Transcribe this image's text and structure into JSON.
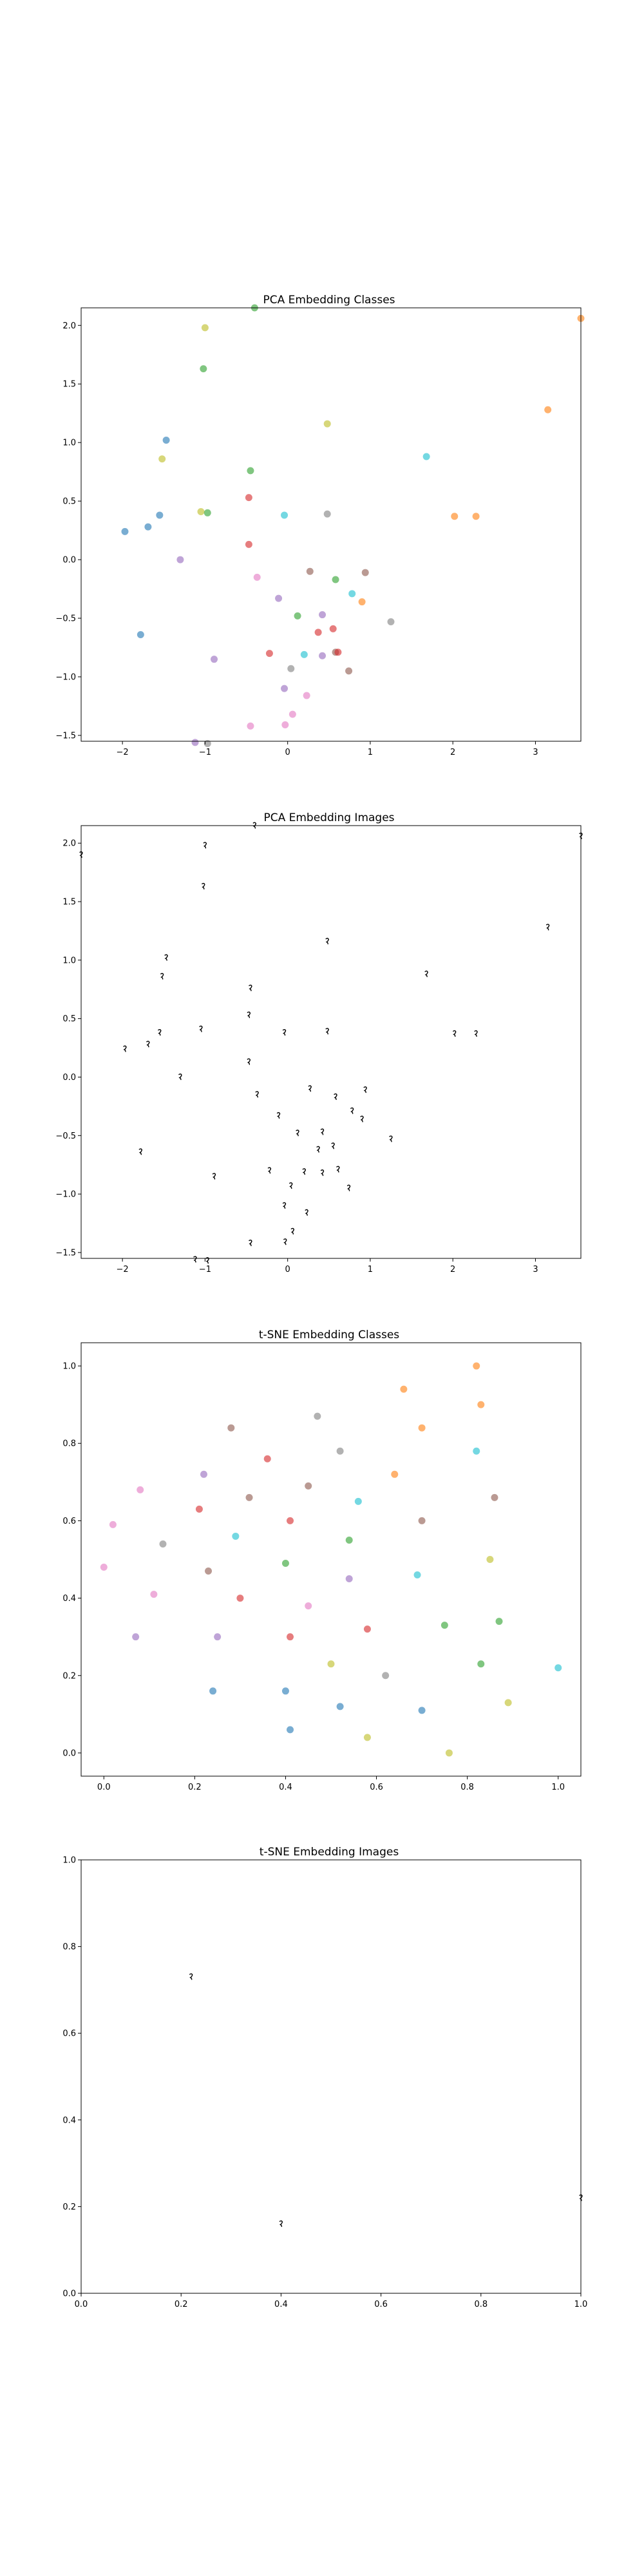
{
  "chart_data": [
    {
      "type": "scatter",
      "title": "PCA Embedding Classes",
      "xlim": [
        -2.5,
        3.55
      ],
      "ylim": [
        -1.55,
        2.15
      ],
      "xticks": [
        -2,
        -1,
        0,
        1,
        2,
        3
      ],
      "yticks": [
        -1.5,
        -1.0,
        -0.5,
        0.0,
        0.5,
        1.0,
        1.5,
        2.0
      ],
      "xtick_labels": [
        "−2",
        "−1",
        "0",
        "1",
        "2",
        "3"
      ],
      "ytick_labels": [
        "−1.5",
        "−1.0",
        "−0.5",
        "0.0",
        "0.5",
        "1.0",
        "1.5",
        "2.0"
      ],
      "marker": "dot",
      "points": [
        {
          "x": -1.0,
          "y": 1.98,
          "color": "#bcbd22"
        },
        {
          "x": -0.4,
          "y": 2.15,
          "color": "#2ca02c"
        },
        {
          "x": 3.55,
          "y": 2.06,
          "color": "#ff7f0e"
        },
        {
          "x": -1.02,
          "y": 1.63,
          "color": "#2ca02c"
        },
        {
          "x": 0.48,
          "y": 1.16,
          "color": "#bcbd22"
        },
        {
          "x": 3.15,
          "y": 1.28,
          "color": "#ff7f0e"
        },
        {
          "x": -1.47,
          "y": 1.02,
          "color": "#1f77b4"
        },
        {
          "x": -1.52,
          "y": 0.86,
          "color": "#bcbd22"
        },
        {
          "x": 1.68,
          "y": 0.88,
          "color": "#17becf"
        },
        {
          "x": -0.45,
          "y": 0.76,
          "color": "#2ca02c"
        },
        {
          "x": -0.47,
          "y": 0.53,
          "color": "#d62728"
        },
        {
          "x": -1.05,
          "y": 0.41,
          "color": "#bcbd22"
        },
        {
          "x": -0.97,
          "y": 0.4,
          "color": "#2ca02c"
        },
        {
          "x": -0.04,
          "y": 0.38,
          "color": "#17becf"
        },
        {
          "x": 0.48,
          "y": 0.39,
          "color": "#7f7f7f"
        },
        {
          "x": 2.02,
          "y": 0.37,
          "color": "#ff7f0e"
        },
        {
          "x": 2.28,
          "y": 0.37,
          "color": "#ff7f0e"
        },
        {
          "x": -1.55,
          "y": 0.38,
          "color": "#1f77b4"
        },
        {
          "x": -1.69,
          "y": 0.28,
          "color": "#1f77b4"
        },
        {
          "x": -1.97,
          "y": 0.24,
          "color": "#1f77b4"
        },
        {
          "x": -0.47,
          "y": 0.13,
          "color": "#d62728"
        },
        {
          "x": -1.3,
          "y": 0.0,
          "color": "#9467bd"
        },
        {
          "x": 0.27,
          "y": -0.1,
          "color": "#8c564b"
        },
        {
          "x": 0.94,
          "y": -0.11,
          "color": "#8c564b"
        },
        {
          "x": -0.37,
          "y": -0.15,
          "color": "#e377c2"
        },
        {
          "x": 0.58,
          "y": -0.17,
          "color": "#2ca02c"
        },
        {
          "x": -0.11,
          "y": -0.33,
          "color": "#9467bd"
        },
        {
          "x": 0.78,
          "y": -0.29,
          "color": "#17becf"
        },
        {
          "x": 0.9,
          "y": -0.36,
          "color": "#ff7f0e"
        },
        {
          "x": 0.12,
          "y": -0.48,
          "color": "#2ca02c"
        },
        {
          "x": 0.42,
          "y": -0.47,
          "color": "#9467bd"
        },
        {
          "x": 1.25,
          "y": -0.53,
          "color": "#7f7f7f"
        },
        {
          "x": 0.37,
          "y": -0.62,
          "color": "#d62728"
        },
        {
          "x": 0.55,
          "y": -0.59,
          "color": "#d62728"
        },
        {
          "x": -1.78,
          "y": -0.64,
          "color": "#1f77b4"
        },
        {
          "x": -0.22,
          "y": -0.8,
          "color": "#d62728"
        },
        {
          "x": 0.2,
          "y": -0.81,
          "color": "#17becf"
        },
        {
          "x": 0.42,
          "y": -0.82,
          "color": "#9467bd"
        },
        {
          "x": 0.58,
          "y": -0.79,
          "color": "#8c564b"
        },
        {
          "x": 0.61,
          "y": -0.79,
          "color": "#d62728"
        },
        {
          "x": -0.89,
          "y": -0.85,
          "color": "#9467bd"
        },
        {
          "x": 0.04,
          "y": -0.93,
          "color": "#7f7f7f"
        },
        {
          "x": 0.74,
          "y": -0.95,
          "color": "#8c564b"
        },
        {
          "x": -0.04,
          "y": -1.1,
          "color": "#9467bd"
        },
        {
          "x": 0.23,
          "y": -1.16,
          "color": "#e377c2"
        },
        {
          "x": 0.06,
          "y": -1.32,
          "color": "#e377c2"
        },
        {
          "x": -0.45,
          "y": -1.42,
          "color": "#e377c2"
        },
        {
          "x": -0.03,
          "y": -1.41,
          "color": "#e377c2"
        },
        {
          "x": -1.12,
          "y": -1.56,
          "color": "#9467bd"
        },
        {
          "x": -0.97,
          "y": -1.57,
          "color": "#7f7f7f"
        }
      ]
    },
    {
      "type": "scatter",
      "title": "PCA Embedding Images",
      "xlim": [
        -2.5,
        3.55
      ],
      "ylim": [
        -1.55,
        2.15
      ],
      "xticks": [
        -2,
        -1,
        0,
        1,
        2,
        3
      ],
      "yticks": [
        -1.5,
        -1.0,
        -0.5,
        0.0,
        0.5,
        1.0,
        1.5,
        2.0
      ],
      "xtick_labels": [
        "−2",
        "−1",
        "0",
        "1",
        "2",
        "3"
      ],
      "ytick_labels": [
        "−1.5",
        "−1.0",
        "−0.5",
        "0.0",
        "0.5",
        "1.0",
        "1.5",
        "2.0"
      ],
      "marker": "image-thumbnail",
      "points": [
        {
          "x": -1.0,
          "y": 1.98
        },
        {
          "x": -0.4,
          "y": 2.15
        },
        {
          "x": 3.55,
          "y": 2.06
        },
        {
          "x": -2.5,
          "y": 1.9
        },
        {
          "x": -1.02,
          "y": 1.63
        },
        {
          "x": 0.48,
          "y": 1.16
        },
        {
          "x": 3.15,
          "y": 1.28
        },
        {
          "x": -1.47,
          "y": 1.02
        },
        {
          "x": -1.52,
          "y": 0.86
        },
        {
          "x": 1.68,
          "y": 0.88
        },
        {
          "x": -0.45,
          "y": 0.76
        },
        {
          "x": -0.47,
          "y": 0.53
        },
        {
          "x": -1.05,
          "y": 0.41
        },
        {
          "x": -0.04,
          "y": 0.38
        },
        {
          "x": 0.48,
          "y": 0.39
        },
        {
          "x": 2.02,
          "y": 0.37
        },
        {
          "x": 2.28,
          "y": 0.37
        },
        {
          "x": -1.55,
          "y": 0.38
        },
        {
          "x": -1.69,
          "y": 0.28
        },
        {
          "x": -1.97,
          "y": 0.24
        },
        {
          "x": -0.47,
          "y": 0.13
        },
        {
          "x": -1.3,
          "y": 0.0
        },
        {
          "x": 0.27,
          "y": -0.1
        },
        {
          "x": 0.94,
          "y": -0.11
        },
        {
          "x": -0.37,
          "y": -0.15
        },
        {
          "x": 0.58,
          "y": -0.17
        },
        {
          "x": -0.11,
          "y": -0.33
        },
        {
          "x": 0.78,
          "y": -0.29
        },
        {
          "x": 0.9,
          "y": -0.36
        },
        {
          "x": 0.12,
          "y": -0.48
        },
        {
          "x": 0.42,
          "y": -0.47
        },
        {
          "x": 1.25,
          "y": -0.53
        },
        {
          "x": 0.37,
          "y": -0.62
        },
        {
          "x": 0.55,
          "y": -0.59
        },
        {
          "x": -1.78,
          "y": -0.64
        },
        {
          "x": -0.22,
          "y": -0.8
        },
        {
          "x": 0.2,
          "y": -0.81
        },
        {
          "x": 0.42,
          "y": -0.82
        },
        {
          "x": 0.61,
          "y": -0.79
        },
        {
          "x": -0.89,
          "y": -0.85
        },
        {
          "x": 0.04,
          "y": -0.93
        },
        {
          "x": 0.74,
          "y": -0.95
        },
        {
          "x": -0.04,
          "y": -1.1
        },
        {
          "x": 0.23,
          "y": -1.16
        },
        {
          "x": 0.06,
          "y": -1.32
        },
        {
          "x": -0.45,
          "y": -1.42
        },
        {
          "x": -0.03,
          "y": -1.41
        },
        {
          "x": -1.12,
          "y": -1.56
        },
        {
          "x": -0.97,
          "y": -1.57
        }
      ]
    },
    {
      "type": "scatter",
      "title": "t-SNE Embedding Classes",
      "xlim": [
        -0.05,
        1.05
      ],
      "ylim": [
        -0.06,
        1.06
      ],
      "xticks": [
        0.0,
        0.2,
        0.4,
        0.6,
        0.8,
        1.0
      ],
      "yticks": [
        0.0,
        0.2,
        0.4,
        0.6,
        0.8,
        1.0
      ],
      "xtick_labels": [
        "0.0",
        "0.2",
        "0.4",
        "0.6",
        "0.8",
        "1.0"
      ],
      "ytick_labels": [
        "0.0",
        "0.2",
        "0.4",
        "0.6",
        "0.8",
        "1.0"
      ],
      "marker": "dot",
      "points": [
        {
          "x": 0.82,
          "y": 1.0,
          "color": "#ff7f0e"
        },
        {
          "x": 0.66,
          "y": 0.94,
          "color": "#ff7f0e"
        },
        {
          "x": 0.83,
          "y": 0.9,
          "color": "#ff7f0e"
        },
        {
          "x": 0.47,
          "y": 0.87,
          "color": "#7f7f7f"
        },
        {
          "x": 0.28,
          "y": 0.84,
          "color": "#8c564b"
        },
        {
          "x": 0.7,
          "y": 0.84,
          "color": "#ff7f0e"
        },
        {
          "x": 0.82,
          "y": 0.78,
          "color": "#17becf"
        },
        {
          "x": 0.52,
          "y": 0.78,
          "color": "#7f7f7f"
        },
        {
          "x": 0.36,
          "y": 0.76,
          "color": "#d62728"
        },
        {
          "x": 0.22,
          "y": 0.72,
          "color": "#9467bd"
        },
        {
          "x": 0.64,
          "y": 0.72,
          "color": "#ff7f0e"
        },
        {
          "x": 0.45,
          "y": 0.69,
          "color": "#8c564b"
        },
        {
          "x": 0.08,
          "y": 0.68,
          "color": "#e377c2"
        },
        {
          "x": 0.32,
          "y": 0.66,
          "color": "#8c564b"
        },
        {
          "x": 0.86,
          "y": 0.66,
          "color": "#8c564b"
        },
        {
          "x": 0.56,
          "y": 0.65,
          "color": "#17becf"
        },
        {
          "x": 0.21,
          "y": 0.63,
          "color": "#d62728"
        },
        {
          "x": 0.7,
          "y": 0.6,
          "color": "#8c564b"
        },
        {
          "x": 0.41,
          "y": 0.6,
          "color": "#d62728"
        },
        {
          "x": 0.02,
          "y": 0.59,
          "color": "#e377c2"
        },
        {
          "x": 0.29,
          "y": 0.56,
          "color": "#17becf"
        },
        {
          "x": 0.54,
          "y": 0.55,
          "color": "#2ca02c"
        },
        {
          "x": 0.13,
          "y": 0.54,
          "color": "#7f7f7f"
        },
        {
          "x": 0.4,
          "y": 0.49,
          "color": "#2ca02c"
        },
        {
          "x": 0.85,
          "y": 0.5,
          "color": "#bcbd22"
        },
        {
          "x": 0.0,
          "y": 0.48,
          "color": "#e377c2"
        },
        {
          "x": 0.23,
          "y": 0.47,
          "color": "#8c564b"
        },
        {
          "x": 0.69,
          "y": 0.46,
          "color": "#17becf"
        },
        {
          "x": 0.54,
          "y": 0.45,
          "color": "#9467bd"
        },
        {
          "x": 0.11,
          "y": 0.41,
          "color": "#e377c2"
        },
        {
          "x": 0.3,
          "y": 0.4,
          "color": "#d62728"
        },
        {
          "x": 0.45,
          "y": 0.38,
          "color": "#e377c2"
        },
        {
          "x": 0.87,
          "y": 0.34,
          "color": "#2ca02c"
        },
        {
          "x": 0.75,
          "y": 0.33,
          "color": "#2ca02c"
        },
        {
          "x": 0.58,
          "y": 0.32,
          "color": "#d62728"
        },
        {
          "x": 0.25,
          "y": 0.3,
          "color": "#9467bd"
        },
        {
          "x": 0.41,
          "y": 0.3,
          "color": "#d62728"
        },
        {
          "x": 0.07,
          "y": 0.3,
          "color": "#9467bd"
        },
        {
          "x": 0.83,
          "y": 0.23,
          "color": "#2ca02c"
        },
        {
          "x": 0.5,
          "y": 0.23,
          "color": "#bcbd22"
        },
        {
          "x": 1.0,
          "y": 0.22,
          "color": "#17becf"
        },
        {
          "x": 0.62,
          "y": 0.2,
          "color": "#7f7f7f"
        },
        {
          "x": 0.24,
          "y": 0.16,
          "color": "#1f77b4"
        },
        {
          "x": 0.4,
          "y": 0.16,
          "color": "#1f77b4"
        },
        {
          "x": 0.89,
          "y": 0.13,
          "color": "#bcbd22"
        },
        {
          "x": 0.52,
          "y": 0.12,
          "color": "#1f77b4"
        },
        {
          "x": 0.7,
          "y": 0.11,
          "color": "#1f77b4"
        },
        {
          "x": 0.41,
          "y": 0.06,
          "color": "#1f77b4"
        },
        {
          "x": 0.58,
          "y": 0.04,
          "color": "#bcbd22"
        },
        {
          "x": 0.76,
          "y": 0.0,
          "color": "#bcbd22"
        }
      ]
    },
    {
      "type": "scatter",
      "title": "t-SNE Embedding Images",
      "xlim": [
        0.0,
        1.0
      ],
      "ylim": [
        0.0,
        1.0
      ],
      "xticks": [
        0.0,
        0.2,
        0.4,
        0.6,
        0.8,
        1.0
      ],
      "yticks": [
        0.0,
        0.2,
        0.4,
        0.6,
        0.8,
        1.0
      ],
      "xtick_labels": [
        "0.0",
        "0.2",
        "0.4",
        "0.6",
        "0.8",
        "1.0"
      ],
      "ytick_labels": [
        "0.0",
        "0.2",
        "0.4",
        "0.6",
        "0.8",
        "1.0"
      ],
      "marker": "image-thumbnail",
      "points": [
        {
          "x": 0.22,
          "y": 0.73
        },
        {
          "x": 1.0,
          "y": 0.22
        },
        {
          "x": 0.4,
          "y": 0.16
        }
      ]
    }
  ]
}
